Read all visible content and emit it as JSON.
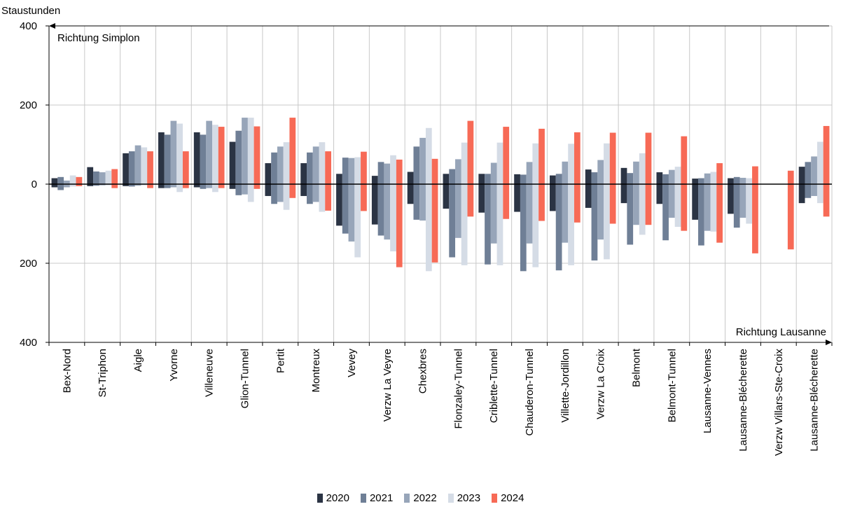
{
  "chart_data": {
    "type": "bar",
    "title": "",
    "ylabel": "Staustunden",
    "ylim": [
      -400,
      400
    ],
    "yticks": [
      400,
      200,
      0,
      200,
      400
    ],
    "grid": true,
    "arrow_up_label": "Richtung Simplon",
    "arrow_down_label": "Richtung Lausanne",
    "legend_position": "bottom",
    "categories": [
      "Bex-Nord",
      "St-Triphon",
      "Aigle",
      "Yvorne",
      "Villeneuve",
      "Glion-Tunnel",
      "Pertit",
      "Montreux",
      "Vevey",
      "Verzw La Veyre",
      "Chexbres",
      "Flonzaley-Tunnel",
      "Criblette-Tunnel",
      "Chauderon-Tunnel",
      "Villette-Jordillon",
      "Verzw La Croix",
      "Belmont",
      "Belmont-Tunnel",
      "Lausanne-Vennes",
      "Lausanne-Blécherette",
      "Verzw Villars-Ste-Croix",
      "Lausanne-Blécherette"
    ],
    "series": [
      {
        "name": "2020",
        "color": "#2b3444",
        "up": [
          15,
          43,
          78,
          131,
          131,
          107,
          53,
          53,
          0,
          0,
          0,
          0,
          0,
          0,
          0,
          0,
          41,
          30,
          0,
          0,
          0,
          44
        ],
        "down": [
          -8,
          -5,
          -5,
          -10,
          -8,
          -12,
          -30,
          -30,
          -105,
          -102,
          -50,
          -62,
          -72,
          -70,
          -68,
          -60,
          -48,
          -50,
          -90,
          -75,
          0,
          -48
        ],
        "pos_override": [
          null,
          null,
          null,
          null,
          null,
          null,
          null,
          null,
          26,
          21,
          31,
          26,
          26,
          25,
          22,
          37,
          null,
          null,
          14,
          15,
          null,
          null
        ]
      },
      {
        "name": "2021",
        "color": "#6f7f96",
        "up": [
          18,
          32,
          83,
          125,
          125,
          135,
          80,
          80,
          67,
          56,
          95,
          38,
          26,
          24,
          26,
          30,
          28,
          25,
          15,
          18,
          0,
          56
        ],
        "down": [
          -15,
          -4,
          -6,
          -10,
          -12,
          -28,
          -50,
          -50,
          -125,
          -130,
          -90,
          -185,
          -203,
          -220,
          -218,
          -193,
          -153,
          -142,
          -155,
          -110,
          0,
          -35
        ]
      },
      {
        "name": "2022",
        "color": "#97a5b9",
        "up": [
          9,
          30,
          98,
          160,
          160,
          168,
          95,
          95,
          66,
          52,
          117,
          63,
          54,
          56,
          57,
          61,
          57,
          36,
          27,
          16,
          0,
          70
        ],
        "down": [
          -8,
          -3,
          -4,
          -8,
          -10,
          -26,
          -45,
          -45,
          -145,
          -140,
          -92,
          -136,
          -150,
          -150,
          -148,
          -140,
          -103,
          -85,
          -118,
          -85,
          0,
          -30
        ]
      },
      {
        "name": "2023",
        "color": "#d5dce6",
        "up": [
          22,
          34,
          93,
          153,
          150,
          168,
          106,
          106,
          68,
          73,
          142,
          105,
          105,
          103,
          102,
          103,
          78,
          44,
          31,
          15,
          0,
          107
        ],
        "down": [
          -6,
          -3,
          -3,
          -20,
          -20,
          -45,
          -65,
          -70,
          -185,
          -170,
          -220,
          -205,
          -205,
          -210,
          -205,
          -190,
          -128,
          -108,
          -120,
          -100,
          0,
          -48
        ]
      },
      {
        "name": "2024",
        "color": "#f76a56",
        "up": [
          18,
          38,
          83,
          83,
          145,
          146,
          168,
          83,
          82,
          62,
          64,
          160,
          145,
          140,
          131,
          130,
          130,
          121,
          53,
          45,
          34,
          147
        ],
        "down": [
          -5,
          -10,
          -10,
          -10,
          -10,
          -12,
          -35,
          -67,
          -68,
          -210,
          -198,
          -82,
          -88,
          -93,
          -97,
          -100,
          -103,
          -118,
          -148,
          -175,
          -165,
          -82
        ]
      }
    ]
  }
}
